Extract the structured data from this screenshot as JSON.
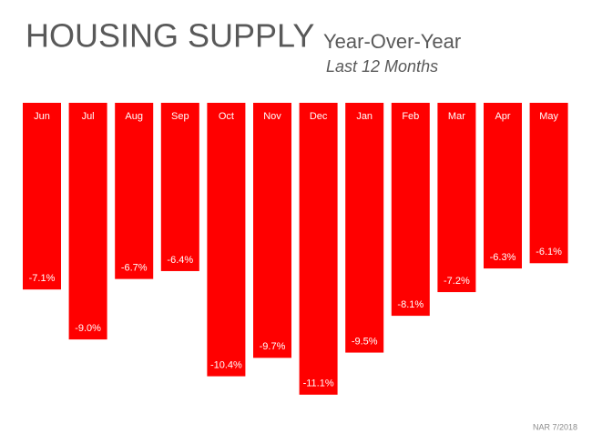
{
  "chart_data": {
    "type": "bar",
    "title": "HOUSING SUPPLY",
    "subtitle": "Year-Over-Year",
    "period": "Last 12 Months",
    "source": "NAR 7/2018",
    "categories": [
      "Jun",
      "Jul",
      "Aug",
      "Sep",
      "Oct",
      "Nov",
      "Dec",
      "Jan",
      "Feb",
      "Mar",
      "Apr",
      "May"
    ],
    "values": [
      -7.1,
      -9.0,
      -6.7,
      -6.4,
      -10.4,
      -9.7,
      -11.1,
      -9.5,
      -8.1,
      -7.2,
      -6.3,
      -6.1
    ],
    "value_labels": [
      "-7.1%",
      "-9.0%",
      "-6.7%",
      "-6.4%",
      "-10.4%",
      "-9.7%",
      "-11.1%",
      "-9.5%",
      "-8.1%",
      "-7.2%",
      "-6.3%",
      "-6.1%"
    ],
    "color": "#ff0000"
  }
}
